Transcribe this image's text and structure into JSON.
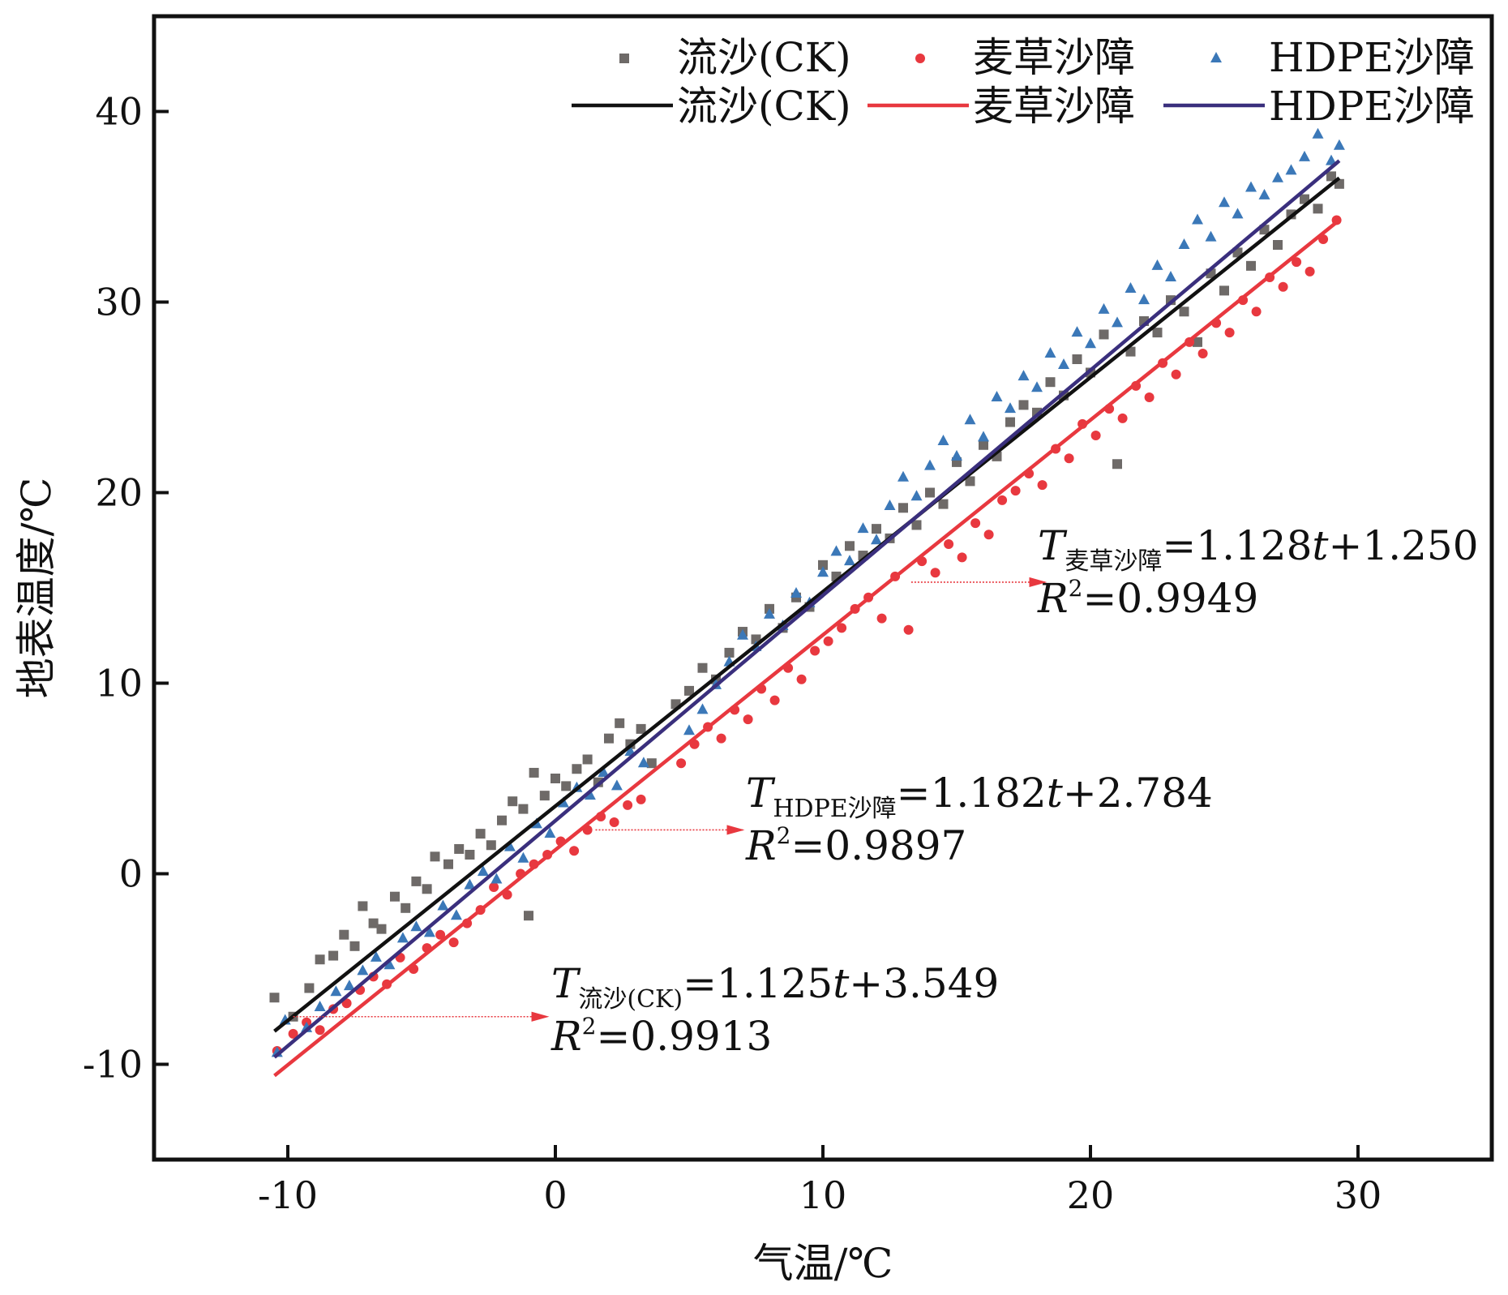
{
  "chart_data": {
    "type": "scatter",
    "xlabel": "气温/℃",
    "ylabel": "地表温度/℃",
    "xlim": [
      -15,
      35
    ],
    "ylim": [
      -15,
      45
    ],
    "xticks": [
      -10,
      0,
      10,
      20,
      30
    ],
    "yticks": [
      -10,
      0,
      10,
      20,
      30,
      40
    ],
    "x_tick_labels": [
      "-10",
      "0",
      "10",
      "20",
      "30"
    ],
    "y_tick_labels": [
      "-10",
      "0",
      "10",
      "20",
      "30",
      "40"
    ],
    "grid": false,
    "legend_position": "top-right",
    "x_range_of_data": [
      -10.5,
      29.3
    ],
    "series": [
      {
        "name": "流沙(CK)",
        "marker": "square",
        "color": "#6e6a68",
        "fit_color": "#111111",
        "slope": 1.125,
        "intercept": 3.549,
        "points": [
          [
            -10.5,
            -6.5
          ],
          [
            -9.8,
            -7.5
          ],
          [
            -9.2,
            -6.0
          ],
          [
            -8.8,
            -4.5
          ],
          [
            -8.3,
            -4.3
          ],
          [
            -7.9,
            -3.2
          ],
          [
            -7.5,
            -3.8
          ],
          [
            -7.2,
            -1.7
          ],
          [
            -6.8,
            -2.6
          ],
          [
            -6.5,
            -2.9
          ],
          [
            -6.0,
            -1.2
          ],
          [
            -5.6,
            -1.8
          ],
          [
            -5.2,
            -0.4
          ],
          [
            -4.8,
            -0.8
          ],
          [
            -4.5,
            0.9
          ],
          [
            -4.0,
            0.5
          ],
          [
            -3.6,
            1.3
          ],
          [
            -3.2,
            1.0
          ],
          [
            -2.8,
            2.1
          ],
          [
            -2.4,
            1.5
          ],
          [
            -2.0,
            2.8
          ],
          [
            -1.6,
            3.8
          ],
          [
            -1.2,
            3.4
          ],
          [
            -0.8,
            5.3
          ],
          [
            -0.4,
            4.1
          ],
          [
            -1.0,
            -2.2
          ],
          [
            0.0,
            5.0
          ],
          [
            0.4,
            4.6
          ],
          [
            0.8,
            5.5
          ],
          [
            1.2,
            6.0
          ],
          [
            1.6,
            4.8
          ],
          [
            2.0,
            7.1
          ],
          [
            2.4,
            7.9
          ],
          [
            2.8,
            6.8
          ],
          [
            3.2,
            7.6
          ],
          [
            3.6,
            5.8
          ],
          [
            4.5,
            8.9
          ],
          [
            5.0,
            9.6
          ],
          [
            5.5,
            10.8
          ],
          [
            6.0,
            10.2
          ],
          [
            6.5,
            11.6
          ],
          [
            7.0,
            12.7
          ],
          [
            7.5,
            12.3
          ],
          [
            8.0,
            13.9
          ],
          [
            8.5,
            12.9
          ],
          [
            9.0,
            14.5
          ],
          [
            9.5,
            14.0
          ],
          [
            10.0,
            16.2
          ],
          [
            10.5,
            15.6
          ],
          [
            11.0,
            17.2
          ],
          [
            11.5,
            16.7
          ],
          [
            12.0,
            18.1
          ],
          [
            12.5,
            17.6
          ],
          [
            13.0,
            19.2
          ],
          [
            13.5,
            18.3
          ],
          [
            14.0,
            20.0
          ],
          [
            14.5,
            19.4
          ],
          [
            15.0,
            21.6
          ],
          [
            15.5,
            20.6
          ],
          [
            16.0,
            22.5
          ],
          [
            16.5,
            21.9
          ],
          [
            17.0,
            23.7
          ],
          [
            17.5,
            24.6
          ],
          [
            18.0,
            24.2
          ],
          [
            18.5,
            25.8
          ],
          [
            19.0,
            25.1
          ],
          [
            19.5,
            27.0
          ],
          [
            20.0,
            26.3
          ],
          [
            20.5,
            28.3
          ],
          [
            21.0,
            21.5
          ],
          [
            21.5,
            27.4
          ],
          [
            22.0,
            29.0
          ],
          [
            22.5,
            28.4
          ],
          [
            23.0,
            30.1
          ],
          [
            23.5,
            29.5
          ],
          [
            24.0,
            27.9
          ],
          [
            24.5,
            31.5
          ],
          [
            25.0,
            30.6
          ],
          [
            25.5,
            32.6
          ],
          [
            26.0,
            31.9
          ],
          [
            26.5,
            33.8
          ],
          [
            27.0,
            33.0
          ],
          [
            27.5,
            34.6
          ],
          [
            28.0,
            35.4
          ],
          [
            28.5,
            34.9
          ],
          [
            29.0,
            36.6
          ],
          [
            29.3,
            36.2
          ]
        ]
      },
      {
        "name": "麦草沙障",
        "marker": "circle",
        "color": "#e8383f",
        "fit_color": "#e8383f",
        "slope": 1.128,
        "intercept": 1.25,
        "points": [
          [
            -10.4,
            -9.3
          ],
          [
            -9.8,
            -8.4
          ],
          [
            -9.3,
            -7.8
          ],
          [
            -8.8,
            -8.2
          ],
          [
            -8.3,
            -7.1
          ],
          [
            -7.8,
            -6.8
          ],
          [
            -7.3,
            -6.1
          ],
          [
            -6.8,
            -5.4
          ],
          [
            -6.3,
            -5.8
          ],
          [
            -5.8,
            -4.4
          ],
          [
            -5.3,
            -5.0
          ],
          [
            -4.8,
            -3.9
          ],
          [
            -4.3,
            -3.2
          ],
          [
            -3.8,
            -3.6
          ],
          [
            -3.3,
            -2.6
          ],
          [
            -2.8,
            -1.9
          ],
          [
            -2.3,
            -0.7
          ],
          [
            -1.8,
            -1.1
          ],
          [
            -1.3,
            0.0
          ],
          [
            -0.8,
            0.5
          ],
          [
            -0.3,
            1.0
          ],
          [
            0.2,
            1.7
          ],
          [
            0.7,
            1.2
          ],
          [
            1.2,
            2.3
          ],
          [
            1.7,
            3.0
          ],
          [
            2.2,
            2.7
          ],
          [
            2.7,
            3.6
          ],
          [
            3.2,
            3.9
          ],
          [
            4.7,
            5.8
          ],
          [
            5.2,
            6.8
          ],
          [
            5.7,
            7.7
          ],
          [
            6.2,
            7.1
          ],
          [
            6.7,
            8.6
          ],
          [
            7.2,
            8.1
          ],
          [
            7.7,
            9.7
          ],
          [
            8.2,
            9.1
          ],
          [
            8.7,
            10.8
          ],
          [
            9.2,
            10.2
          ],
          [
            9.7,
            11.7
          ],
          [
            10.2,
            12.2
          ],
          [
            10.7,
            12.9
          ],
          [
            11.2,
            13.9
          ],
          [
            11.7,
            14.5
          ],
          [
            12.2,
            13.4
          ],
          [
            12.7,
            15.6
          ],
          [
            13.2,
            12.8
          ],
          [
            13.7,
            16.4
          ],
          [
            14.2,
            15.8
          ],
          [
            14.7,
            17.3
          ],
          [
            15.2,
            16.6
          ],
          [
            15.7,
            18.4
          ],
          [
            16.2,
            17.8
          ],
          [
            16.7,
            19.6
          ],
          [
            17.2,
            20.1
          ],
          [
            17.7,
            21.0
          ],
          [
            18.2,
            20.4
          ],
          [
            18.7,
            22.3
          ],
          [
            19.2,
            21.8
          ],
          [
            19.7,
            23.6
          ],
          [
            20.2,
            23.0
          ],
          [
            20.7,
            24.4
          ],
          [
            21.2,
            23.9
          ],
          [
            21.7,
            25.6
          ],
          [
            22.2,
            25.0
          ],
          [
            22.7,
            26.8
          ],
          [
            23.2,
            26.2
          ],
          [
            23.7,
            27.9
          ],
          [
            24.2,
            27.3
          ],
          [
            24.7,
            28.9
          ],
          [
            25.2,
            28.4
          ],
          [
            25.7,
            30.1
          ],
          [
            26.2,
            29.5
          ],
          [
            26.7,
            31.3
          ],
          [
            27.2,
            30.8
          ],
          [
            27.7,
            32.1
          ],
          [
            28.2,
            31.6
          ],
          [
            28.7,
            33.3
          ],
          [
            29.2,
            34.3
          ]
        ]
      },
      {
        "name": "HDPE沙障",
        "marker": "triangle",
        "color": "#3b78b8",
        "fit_color": "#3a2f7d",
        "slope": 1.182,
        "intercept": 2.784,
        "points": [
          [
            -10.4,
            -9.4
          ],
          [
            -10.1,
            -7.7
          ],
          [
            -9.3,
            -8.1
          ],
          [
            -8.8,
            -7.0
          ],
          [
            -8.2,
            -6.2
          ],
          [
            -7.7,
            -5.9
          ],
          [
            -7.2,
            -5.1
          ],
          [
            -6.7,
            -4.4
          ],
          [
            -6.2,
            -4.8
          ],
          [
            -5.7,
            -3.4
          ],
          [
            -5.2,
            -2.8
          ],
          [
            -4.7,
            -3.1
          ],
          [
            -4.2,
            -1.7
          ],
          [
            -3.7,
            -2.2
          ],
          [
            -3.2,
            -0.6
          ],
          [
            -2.7,
            0.1
          ],
          [
            -2.2,
            -0.3
          ],
          [
            -1.7,
            1.4
          ],
          [
            -1.2,
            0.8
          ],
          [
            -0.7,
            2.6
          ],
          [
            -0.2,
            2.1
          ],
          [
            0.3,
            3.7
          ],
          [
            0.8,
            4.5
          ],
          [
            1.3,
            4.1
          ],
          [
            1.8,
            5.3
          ],
          [
            2.3,
            4.6
          ],
          [
            2.8,
            6.4
          ],
          [
            3.3,
            5.8
          ],
          [
            5.0,
            7.5
          ],
          [
            5.5,
            8.6
          ],
          [
            6.0,
            9.9
          ],
          [
            6.5,
            11.1
          ],
          [
            7.0,
            12.5
          ],
          [
            7.5,
            11.9
          ],
          [
            8.0,
            13.6
          ],
          [
            8.5,
            13.0
          ],
          [
            9.0,
            14.7
          ],
          [
            9.5,
            14.2
          ],
          [
            10.0,
            15.8
          ],
          [
            10.5,
            16.9
          ],
          [
            11.0,
            16.4
          ],
          [
            11.5,
            18.1
          ],
          [
            12.0,
            17.5
          ],
          [
            12.5,
            19.3
          ],
          [
            13.0,
            20.8
          ],
          [
            13.5,
            19.8
          ],
          [
            14.0,
            21.4
          ],
          [
            14.5,
            22.7
          ],
          [
            15.0,
            21.9
          ],
          [
            15.5,
            23.8
          ],
          [
            16.0,
            22.9
          ],
          [
            16.5,
            25.0
          ],
          [
            17.0,
            24.4
          ],
          [
            17.5,
            26.1
          ],
          [
            18.0,
            25.5
          ],
          [
            18.5,
            27.3
          ],
          [
            19.0,
            26.7
          ],
          [
            19.5,
            28.4
          ],
          [
            20.0,
            27.8
          ],
          [
            20.5,
            29.6
          ],
          [
            21.0,
            28.9
          ],
          [
            21.5,
            30.7
          ],
          [
            22.0,
            30.1
          ],
          [
            22.5,
            31.9
          ],
          [
            23.0,
            31.3
          ],
          [
            23.5,
            33.0
          ],
          [
            24.0,
            34.3
          ],
          [
            24.5,
            33.4
          ],
          [
            25.0,
            35.2
          ],
          [
            25.5,
            34.6
          ],
          [
            26.0,
            36.0
          ],
          [
            26.5,
            35.6
          ],
          [
            27.0,
            36.5
          ],
          [
            27.5,
            36.9
          ],
          [
            28.0,
            37.6
          ],
          [
            28.5,
            38.8
          ],
          [
            29.0,
            37.4
          ],
          [
            29.3,
            38.2
          ]
        ]
      }
    ],
    "legend": {
      "scatter_labels": [
        "流沙(CK)",
        "麦草沙障",
        "HDPE沙障"
      ],
      "line_labels": [
        "流沙(CK)",
        "麦草沙障",
        "HDPE沙障"
      ]
    },
    "annotations": [
      {
        "id": "wheat",
        "T": "T",
        "subscript": "麦草沙障",
        "equation": "=1.128t+1.250",
        "eq_prefix": "=1.128",
        "eq_var": "t",
        "eq_suffix": "+1.250",
        "R": "R",
        "R_sup": "2",
        "r2_value": "=0.9949",
        "arrow_from": [
          13.3,
          15.3
        ],
        "arrow_to": [
          18.3,
          15.3
        ]
      },
      {
        "id": "hdpe",
        "T": "T",
        "subscript": "HDPE沙障",
        "equation": "=1.182t+2.784",
        "eq_prefix": "=1.182",
        "eq_var": "t",
        "eq_suffix": "+2.784",
        "R": "R",
        "R_sup": "2",
        "r2_value": "=0.9897",
        "arrow_from": [
          1.5,
          2.3
        ],
        "arrow_to": [
          7.0,
          2.3
        ]
      },
      {
        "id": "ck",
        "T": "T",
        "subscript": "流沙(CK)",
        "equation": "=1.125t+3.549",
        "eq_prefix": "=1.125",
        "eq_var": "t",
        "eq_suffix": "+3.549",
        "R": "R",
        "R_sup": "2",
        "r2_value": "=0.9913",
        "arrow_from": [
          -9.8,
          -7.5
        ],
        "arrow_to": [
          -0.3,
          -7.5
        ]
      }
    ]
  }
}
